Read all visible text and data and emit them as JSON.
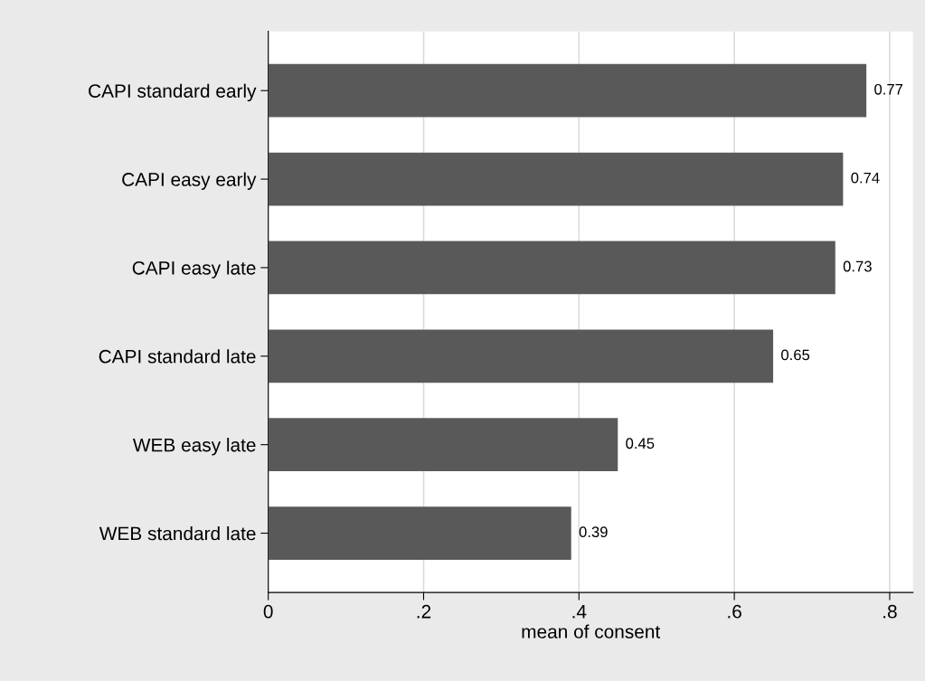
{
  "chart_data": {
    "type": "bar",
    "orientation": "horizontal",
    "xlabel": "mean of consent",
    "categories": [
      "CAPI standard early",
      "CAPI easy early",
      "CAPI easy late",
      "CAPI standard late",
      "WEB easy late",
      "WEB standard late"
    ],
    "values": [
      0.77,
      0.74,
      0.73,
      0.65,
      0.45,
      0.39
    ],
    "color": "#595959",
    "xlim": [
      0,
      0.83
    ],
    "xticks": [
      0,
      {
        "value": 0.2,
        "label": ".2"
      },
      {
        "value": 0.4,
        "label": ".4"
      },
      {
        "value": 0.6,
        "label": ".6"
      },
      {
        "value": 0.8,
        "label": ".8"
      }
    ],
    "grid": "x",
    "data_labels": true
  }
}
